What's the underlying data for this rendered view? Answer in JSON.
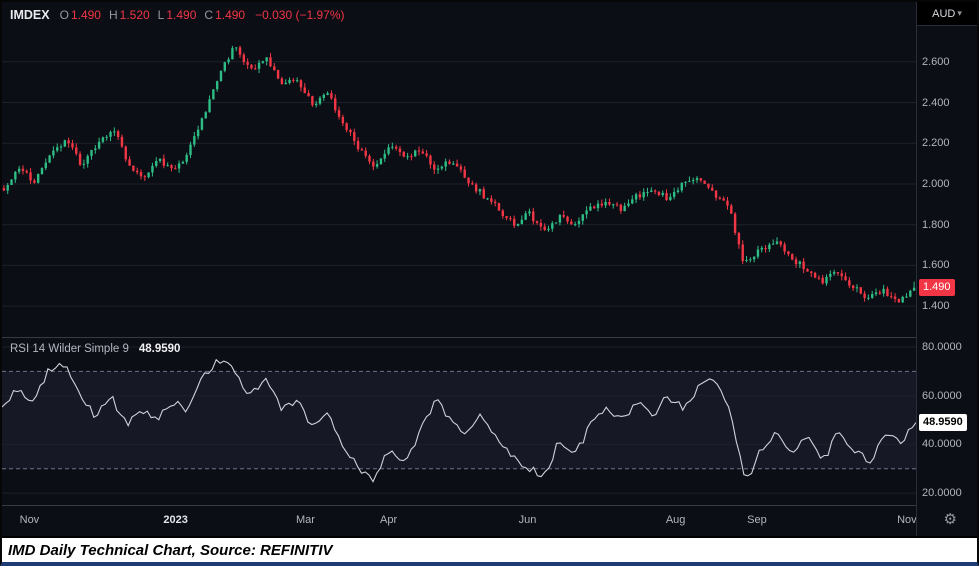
{
  "legend": {
    "symbol": "IMDEX",
    "items": [
      {
        "label": "O",
        "value": "1.490"
      },
      {
        "label": "H",
        "value": "1.520"
      },
      {
        "label": "L",
        "value": "1.490"
      },
      {
        "label": "C",
        "value": "1.490"
      }
    ],
    "change": "−0.030 (−1.97%)"
  },
  "axis": {
    "currency": "AUD",
    "last_price": "1.490"
  },
  "rsi": {
    "title": "RSI 14 Wilder Simple 9",
    "value": "48.9590"
  },
  "time_axis": {
    "labels": [
      {
        "text": "Nov",
        "f": 0.03
      },
      {
        "text": "2023",
        "f": 0.19,
        "bold": true
      },
      {
        "text": "Mar",
        "f": 0.332
      },
      {
        "text": "Apr",
        "f": 0.423
      },
      {
        "text": "Jun",
        "f": 0.575
      },
      {
        "text": "Aug",
        "f": 0.737
      },
      {
        "text": "Sep",
        "f": 0.826
      },
      {
        "text": "Nov",
        "f": 0.99
      }
    ]
  },
  "caption": "IMD Daily Technical Chart, Source: REFINITIV",
  "colors": {
    "up": "#2ebd85",
    "down": "#f23645",
    "rsi_line": "#cfd2da",
    "grid": "#1b202b",
    "band_fill": "rgba(130,120,185,0.10)",
    "band_line": "#6e7186",
    "axis_text": "#b2b5be",
    "badge_red": "#f23645"
  },
  "chart_data": [
    {
      "type": "candlestick",
      "title": "IMDEX",
      "currency": "AUD",
      "ohlc": {
        "open": 1.49,
        "high": 1.52,
        "low": 1.49,
        "close": 1.49
      },
      "change": -0.03,
      "change_pct": -1.97,
      "ylim": [
        1.248,
        2.894
      ],
      "y_ticks": [
        {
          "value": 2.6,
          "label": "2.600"
        },
        {
          "value": 2.4,
          "label": "2.400"
        },
        {
          "value": 2.2,
          "label": "2.200"
        },
        {
          "value": 2.0,
          "label": "2.000"
        },
        {
          "value": 1.8,
          "label": "1.800"
        },
        {
          "value": 1.6,
          "label": "1.600"
        },
        {
          "value": 1.4,
          "label": "1.400"
        }
      ],
      "n_candles": 240,
      "close_path": [
        1.97,
        2.08,
        2.0,
        2.15,
        2.22,
        2.1,
        2.18,
        2.28,
        2.12,
        2.02,
        2.12,
        2.06,
        2.16,
        2.35,
        2.55,
        2.68,
        2.55,
        2.62,
        2.48,
        2.52,
        2.4,
        2.44,
        2.3,
        2.18,
        2.08,
        2.2,
        2.12,
        2.18,
        2.06,
        2.12,
        2.02,
        1.95,
        1.88,
        1.8,
        1.86,
        1.76,
        1.84,
        1.8,
        1.88,
        1.92,
        1.87,
        1.94,
        1.98,
        1.93,
        2.0,
        2.03,
        1.95,
        1.88,
        1.6,
        1.68,
        1.72,
        1.64,
        1.58,
        1.52,
        1.58,
        1.5,
        1.44,
        1.48,
        1.42,
        1.49
      ],
      "x_labels": [
        "Nov",
        "2023",
        "Mar",
        "Apr",
        "Jun",
        "Aug",
        "Sep",
        "Nov"
      ]
    },
    {
      "type": "line",
      "name": "RSI 14 Wilder Simple 9",
      "last_value": 48.959,
      "ylim": [
        15.1,
        83.7
      ],
      "y_ticks": [
        {
          "value": 80,
          "label": "80.0000"
        },
        {
          "value": 60,
          "label": "60.0000"
        },
        {
          "value": 40,
          "label": "40.0000"
        },
        {
          "value": 20,
          "label": "20.0000"
        }
      ],
      "bands": {
        "upper": 70,
        "lower": 30
      },
      "values": [
        56,
        63,
        58,
        70,
        73,
        60,
        52,
        60,
        48,
        55,
        50,
        58,
        54,
        68,
        75,
        70,
        60,
        66,
        55,
        58,
        48,
        52,
        40,
        30,
        26,
        38,
        33,
        45,
        58,
        50,
        44,
        52,
        42,
        35,
        30,
        27,
        42,
        36,
        48,
        55,
        50,
        58,
        52,
        60,
        55,
        64,
        68,
        55,
        24,
        38,
        45,
        37,
        43,
        33,
        45,
        38,
        33,
        44,
        40,
        49
      ]
    }
  ]
}
